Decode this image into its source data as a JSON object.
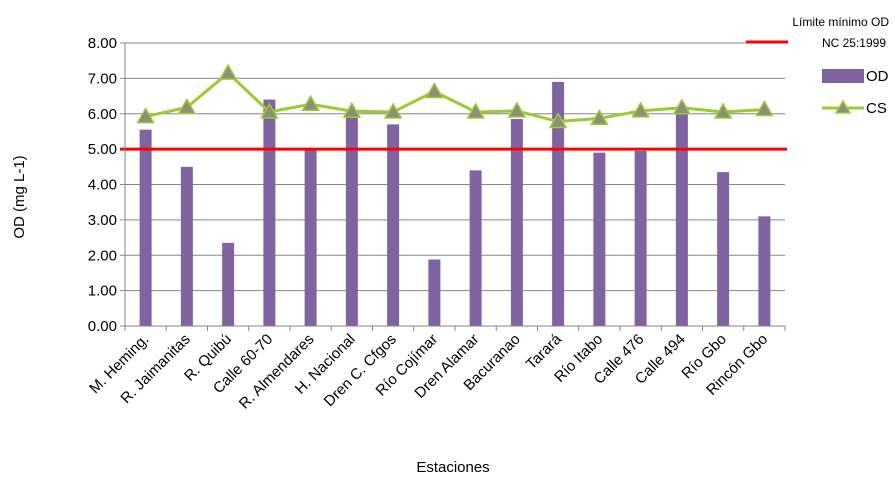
{
  "chart_data": {
    "type": "bar",
    "xlabel": "Estaciones",
    "ylabel": "OD (mg L-1)",
    "ylim": [
      0,
      8
    ],
    "yticks": [
      "0.00",
      "1.00",
      "2.00",
      "3.00",
      "4.00",
      "5.00",
      "6.00",
      "7.00",
      "8.00"
    ],
    "grid": true,
    "categories": [
      "M. Heming.",
      "R. Jaimanitas",
      "R. Quibú",
      "Calle 60-70",
      "R. Almendares",
      "H. Nacional",
      "Dren C. Cfgos",
      "Río Cojímar",
      "Dren Alamar",
      "Bacuranao",
      "Tarará",
      "Río Itabo",
      "Calle 476",
      "Calle 494",
      "Río Gbo",
      "Rincón Gbo"
    ],
    "series": [
      {
        "name": "OD",
        "kind": "bar",
        "color": "#8064A2",
        "values": [
          5.55,
          4.5,
          2.35,
          6.4,
          5.0,
          6.05,
          5.7,
          1.88,
          4.4,
          5.85,
          6.9,
          4.9,
          4.95,
          6.2,
          4.35,
          3.1
        ]
      },
      {
        "name": "CS",
        "kind": "line",
        "color": "#99CC33",
        "marker": "triangle",
        "values": [
          5.92,
          6.18,
          7.15,
          6.05,
          6.27,
          6.07,
          6.05,
          6.63,
          6.05,
          6.08,
          5.78,
          5.87,
          6.08,
          6.17,
          6.05,
          6.12
        ]
      }
    ],
    "reference_line": {
      "label_line1": "Límite mínimo OD",
      "label_line2": "NC 25:1999",
      "value": 5.0,
      "color": "#FF0000"
    },
    "legend": {
      "position": "right"
    }
  }
}
